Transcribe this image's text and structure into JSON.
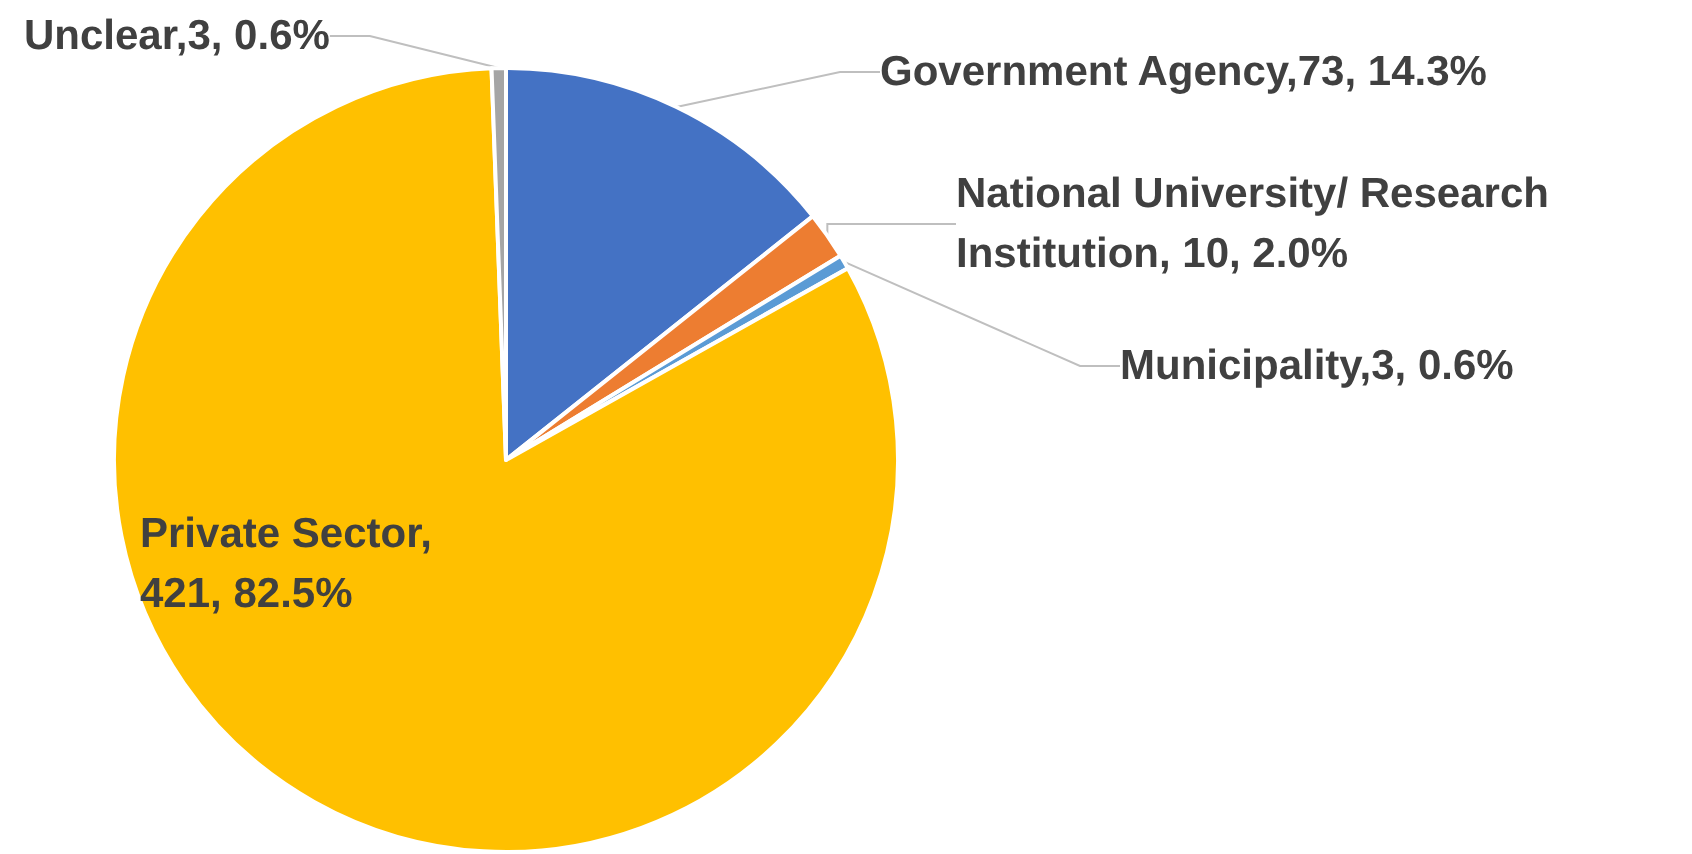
{
  "chart_data": {
    "type": "pie",
    "categories": [
      "Government Agency",
      "National University/ Research Institution",
      "Municipality",
      "Private Sector",
      "Unclear"
    ],
    "values": [
      73,
      10,
      3,
      421,
      3
    ],
    "value_labels": [
      ",73, 14.3%",
      ", 10, 2.0%",
      ",3, 0.6%",
      ", 421, 82.5%",
      ",3, 0.6%"
    ],
    "colors": [
      "#4472c4",
      "#ed7d31",
      "#5b9bd5",
      "#ffc000",
      "#a5a5a5"
    ],
    "legend": false
  }
}
